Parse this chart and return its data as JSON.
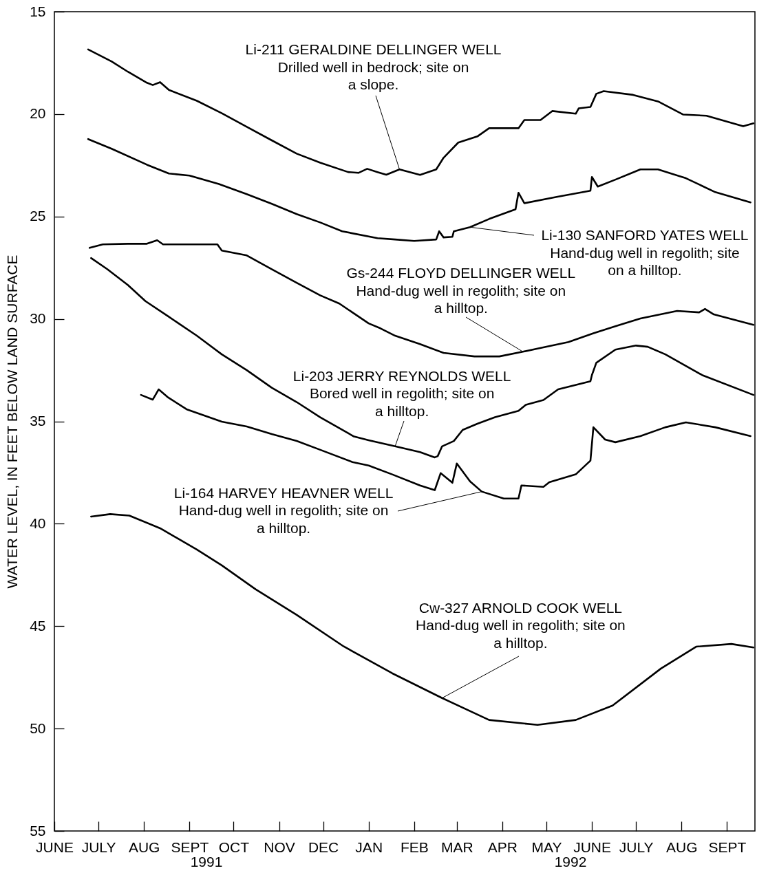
{
  "chart_data": {
    "type": "line",
    "ylabel": "WATER LEVEL, IN FEET BELOW LAND SURFACE",
    "ylim": [
      55,
      15
    ],
    "yticks": [
      15,
      20,
      25,
      30,
      35,
      40,
      45,
      50,
      55
    ],
    "xlim": [
      "1991-06-01",
      "1992-09-20"
    ],
    "xticks": [
      {
        "value": "1991-06-01",
        "label": "JUNE"
      },
      {
        "value": "1991-07-01",
        "label": "JULY"
      },
      {
        "value": "1991-08-01",
        "label": "AUG"
      },
      {
        "value": "1991-09-01",
        "label": "SEPT"
      },
      {
        "value": "1991-10-01",
        "label": "OCT"
      },
      {
        "value": "1991-11-01",
        "label": "NOV"
      },
      {
        "value": "1991-12-01",
        "label": "DEC"
      },
      {
        "value": "1992-01-01",
        "label": "JAN"
      },
      {
        "value": "1992-02-01",
        "label": "FEB"
      },
      {
        "value": "1992-03-01",
        "label": "MAR"
      },
      {
        "value": "1992-04-01",
        "label": "APR"
      },
      {
        "value": "1992-05-01",
        "label": "MAY"
      },
      {
        "value": "1992-06-01",
        "label": "JUNE"
      },
      {
        "value": "1992-07-01",
        "label": "JULY"
      },
      {
        "value": "1992-08-01",
        "label": "AUG"
      },
      {
        "value": "1992-09-01",
        "label": "SEPT"
      }
    ],
    "series": [
      {
        "color": "#000000",
        "x": [
          "1991-06-24",
          "1991-07-10",
          "1991-07-21",
          "1991-08-03",
          "1991-08-07",
          "1991-08-12",
          "1991-08-18",
          "1991-09-06",
          "1991-09-23",
          "1991-10-10",
          "1991-10-27",
          "1991-11-13",
          "1991-11-29",
          "1991-12-18",
          "1991-12-25",
          "1991-12-31",
          "1992-01-07",
          "1992-01-13",
          "1992-01-22",
          "1992-02-05",
          "1992-02-16",
          "1992-02-21",
          "1992-03-02",
          "1992-03-15",
          "1992-03-23",
          "1992-04-12",
          "1992-04-16",
          "1992-04-27",
          "1992-05-05",
          "1992-05-21",
          "1992-05-23",
          "1992-05-31",
          "1992-06-04",
          "1992-06-09",
          "1992-06-29",
          "1992-07-16",
          "1992-08-02",
          "1992-08-18",
          "1992-09-12",
          "1992-09-19"
        ],
        "values": [
          16.84,
          17.43,
          17.93,
          18.47,
          18.58,
          18.44,
          18.82,
          19.35,
          19.96,
          20.62,
          21.28,
          21.93,
          22.37,
          22.83,
          22.87,
          22.67,
          22.83,
          22.96,
          22.7,
          22.97,
          22.7,
          22.13,
          21.39,
          21.09,
          20.69,
          20.69,
          20.29,
          20.29,
          19.85,
          19.98,
          19.72,
          19.65,
          19.01,
          18.88,
          19.06,
          19.38,
          20.02,
          20.08,
          20.59,
          20.45
        ]
      },
      {
        "color": "#000000",
        "x": [
          "1991-06-24",
          "1991-07-10",
          "1991-08-03",
          "1991-08-18",
          "1991-09-01",
          "1991-09-21",
          "1991-10-10",
          "1991-10-27",
          "1991-11-13",
          "1991-11-29",
          "1991-12-14",
          "1992-01-07",
          "1992-01-19",
          "1992-02-01",
          "1992-02-16",
          "1992-02-18",
          "1992-02-21",
          "1992-02-27",
          "1992-02-28",
          "1992-03-10",
          "1992-03-23",
          "1992-04-10",
          "1992-04-12",
          "1992-04-16",
          "1992-05-08",
          "1992-05-31",
          "1992-06-01",
          "1992-06-05",
          "1992-06-17",
          "1992-07-04",
          "1992-07-16",
          "1992-08-04",
          "1992-08-24",
          "1992-09-17"
        ],
        "values": [
          21.22,
          21.69,
          22.47,
          22.9,
          23.0,
          23.41,
          23.91,
          24.38,
          24.88,
          25.29,
          25.72,
          26.06,
          26.12,
          26.19,
          26.12,
          25.72,
          26.02,
          25.99,
          25.72,
          25.52,
          25.12,
          24.65,
          23.84,
          24.35,
          24.04,
          23.74,
          23.07,
          23.54,
          23.2,
          22.7,
          22.7,
          23.13,
          23.81,
          24.31
        ]
      },
      {
        "color": "#000000",
        "x": [
          "1991-06-25",
          "1991-07-04",
          "1991-07-21",
          "1991-08-03",
          "1991-08-10",
          "1991-08-14",
          "1991-09-03",
          "1991-09-20",
          "1991-09-23",
          "1991-10-10",
          "1991-10-27",
          "1991-11-13",
          "1991-11-29",
          "1991-12-12",
          "1992-01-01",
          "1992-01-09",
          "1992-01-19",
          "1992-02-05",
          "1992-02-21",
          "1992-03-13",
          "1992-03-30",
          "1992-04-15",
          "1992-05-16",
          "1992-06-02",
          "1992-06-17",
          "1992-07-04",
          "1992-07-29",
          "1992-08-13",
          "1992-08-17",
          "1992-08-23",
          "1992-09-19"
        ],
        "values": [
          26.53,
          26.36,
          26.33,
          26.33,
          26.16,
          26.36,
          26.36,
          26.36,
          26.66,
          26.9,
          27.57,
          28.24,
          28.85,
          29.25,
          30.22,
          30.46,
          30.82,
          31.23,
          31.66,
          31.83,
          31.83,
          31.6,
          31.13,
          30.7,
          30.36,
          29.98,
          29.61,
          29.68,
          29.51,
          29.78,
          30.29
        ]
      },
      {
        "color": "#000000",
        "x": [
          "1991-06-26",
          "1991-07-07",
          "1991-07-21",
          "1991-08-02",
          "1991-08-17",
          "1991-09-06",
          "1991-09-23",
          "1991-10-10",
          "1991-10-27",
          "1991-11-13",
          "1991-11-29",
          "1991-12-22",
          "1992-01-01",
          "1992-01-19",
          "1992-02-05",
          "1992-02-15",
          "1992-02-17",
          "1992-02-20",
          "1992-02-28",
          "1992-03-05",
          "1992-03-15",
          "1992-03-27",
          "1992-04-12",
          "1992-04-17",
          "1992-04-29",
          "1992-05-09",
          "1992-05-31",
          "1992-06-01",
          "1992-06-04",
          "1992-06-17",
          "1992-07-01",
          "1992-07-09",
          "1992-07-21",
          "1992-08-15",
          "1992-09-19"
        ],
        "values": [
          27.03,
          27.57,
          28.34,
          29.13,
          29.85,
          30.82,
          31.73,
          32.5,
          33.36,
          34.06,
          34.8,
          35.74,
          35.92,
          36.22,
          36.5,
          36.76,
          36.7,
          36.22,
          35.96,
          35.42,
          35.12,
          34.8,
          34.49,
          34.19,
          33.96,
          33.44,
          33.04,
          32.74,
          32.14,
          31.5,
          31.3,
          31.36,
          31.73,
          32.74,
          33.71
        ]
      },
      {
        "color": "#000000",
        "x": [
          "1991-07-30",
          "1991-08-07",
          "1991-08-11",
          "1991-08-17",
          "1991-08-30",
          "1991-09-23",
          "1991-10-10",
          "1991-10-27",
          "1991-11-13",
          "1991-11-29",
          "1991-12-21",
          "1992-01-01",
          "1992-01-17",
          "1992-02-05",
          "1992-02-15",
          "1992-02-19",
          "1992-02-27",
          "1992-03-01",
          "1992-03-10",
          "1992-03-18",
          "1992-04-02",
          "1992-04-12",
          "1992-04-14",
          "1992-04-29",
          "1992-05-03",
          "1992-05-21",
          "1992-05-31",
          "1992-06-02",
          "1992-06-10",
          "1992-06-17",
          "1992-07-04",
          "1992-07-21",
          "1992-08-04",
          "1992-08-24",
          "1992-09-17"
        ],
        "values": [
          33.71,
          33.94,
          33.44,
          33.81,
          34.41,
          35.02,
          35.25,
          35.62,
          35.96,
          36.39,
          36.99,
          37.16,
          37.59,
          38.13,
          38.36,
          37.53,
          38.0,
          37.06,
          37.93,
          38.43,
          38.77,
          38.77,
          38.13,
          38.2,
          37.97,
          37.59,
          36.92,
          35.29,
          35.89,
          36.02,
          35.72,
          35.29,
          35.05,
          35.29,
          35.72
        ]
      },
      {
        "color": "#000000",
        "x": [
          "1991-06-26",
          "1991-07-09",
          "1991-07-22",
          "1991-08-12",
          "1991-09-06",
          "1991-09-23",
          "1991-10-16",
          "1991-11-13",
          "1991-12-15",
          "1992-01-17",
          "1992-02-20",
          "1992-03-23",
          "1992-04-25",
          "1992-05-21",
          "1992-06-15",
          "1992-07-18",
          "1992-08-11",
          "1992-09-04",
          "1992-09-19"
        ],
        "values": [
          39.65,
          39.53,
          39.6,
          40.22,
          41.26,
          42.03,
          43.2,
          44.45,
          45.99,
          47.3,
          48.51,
          49.58,
          49.82,
          49.58,
          48.88,
          47.07,
          46.0,
          45.87,
          46.04
        ]
      }
    ],
    "annotations": [
      {
        "text": "Li-211 GERALDINE DELLINGER WELL\nDrilled well in bedrock; site on\na slope.",
        "x": "1992-01-22",
        "y": 22.7
      },
      {
        "text": "Li-130 SANFORD YATES WELL\nHand-dug well in regolith; site\non a hilltop.",
        "x": "1992-03-10",
        "y": 25.52
      },
      {
        "text": "Gs-244 FLOYD DELLINGER WELL\nHand-dug well in regolith; site on\na hilltop.",
        "x": "1992-04-15",
        "y": 31.6
      },
      {
        "text": "Li-203 JERRY REYNOLDS WELL\nBored well in regolith; site on\na hilltop.",
        "x": "1992-01-19",
        "y": 36.22
      },
      {
        "text": "Li-164 HARVEY HEAVNER WELL\nHand-dug well in regolith; site on\na hilltop.",
        "x": "1992-03-18",
        "y": 38.43
      },
      {
        "text": "Cw-327 ARNOLD COOK WELL\nHand-dug well in regolith; site on\na hilltop.",
        "x": "1992-02-20",
        "y": 48.51
      },
      "1991",
      "1992"
    ]
  }
}
